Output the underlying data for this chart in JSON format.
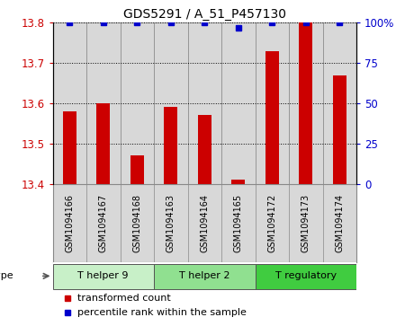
{
  "title": "GDS5291 / A_51_P457130",
  "samples": [
    "GSM1094166",
    "GSM1094167",
    "GSM1094168",
    "GSM1094163",
    "GSM1094164",
    "GSM1094165",
    "GSM1094172",
    "GSM1094173",
    "GSM1094174"
  ],
  "red_values": [
    13.58,
    13.6,
    13.47,
    13.59,
    13.57,
    13.41,
    13.73,
    13.8,
    13.67
  ],
  "blue_values": [
    100,
    100,
    100,
    100,
    100,
    97,
    100,
    100,
    100
  ],
  "ylim_left": [
    13.4,
    13.8
  ],
  "ylim_right": [
    0,
    100
  ],
  "yticks_left": [
    13.4,
    13.5,
    13.6,
    13.7,
    13.8
  ],
  "yticks_right": [
    0,
    25,
    50,
    75,
    100
  ],
  "cell_types": [
    {
      "label": "T helper 9",
      "indices": [
        0,
        1,
        2
      ],
      "color": "#c8f0c8"
    },
    {
      "label": "T helper 2",
      "indices": [
        3,
        4,
        5
      ],
      "color": "#90e090"
    },
    {
      "label": "T regulatory",
      "indices": [
        6,
        7,
        8
      ],
      "color": "#40cc40"
    }
  ],
  "bar_color": "#cc0000",
  "dot_color": "#0000cc",
  "sample_box_color": "#d8d8d8",
  "sample_box_edge": "#888888",
  "plot_bg": "#ffffff",
  "tick_color_left": "#cc0000",
  "tick_color_right": "#0000cc",
  "title_fontsize": 10,
  "axis_fontsize": 8.5,
  "sample_fontsize": 7,
  "legend_fontsize": 8,
  "celltype_fontsize": 8
}
